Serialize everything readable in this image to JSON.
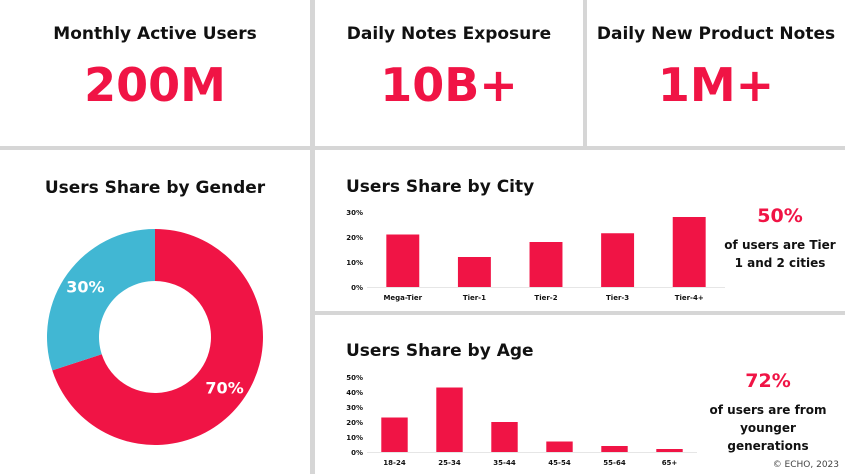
{
  "colors": {
    "accent": "#f01445",
    "secondary": "#41b7d3",
    "text": "#111111"
  },
  "stats": [
    {
      "title": "Monthly Active Users",
      "value": "200M"
    },
    {
      "title": "Daily Notes Exposure",
      "value": "10B+"
    },
    {
      "title": "Daily New Product Notes",
      "value": "1M+"
    }
  ],
  "gender": {
    "title": "Users Share by Gender"
  },
  "city": {
    "title": "Users Share by City",
    "highlight_value": "50%",
    "highlight_text": "of users are Tier 1 and 2 cities"
  },
  "age": {
    "title": "Users Share by Age",
    "highlight_value": "72%",
    "highlight_text": "of users are from younger generations"
  },
  "copyright": "© ECHO, 2023",
  "chart_data": [
    {
      "type": "pie",
      "title": "Users Share by Gender",
      "categories": [
        "",
        ""
      ],
      "values": [
        70,
        30
      ],
      "labels": [
        "70%",
        "30%"
      ],
      "colors": [
        "#f01445",
        "#41b7d3"
      ],
      "donut": true
    },
    {
      "type": "bar",
      "title": "Users Share by City",
      "categories": [
        "Mega-Tier",
        "Tier-1",
        "Tier-2",
        "Tier-3",
        "Tier-4+"
      ],
      "values": [
        21,
        12,
        18,
        21.5,
        28
      ],
      "yticks": [
        "0%",
        "10%",
        "20%",
        "30%"
      ],
      "ylim": [
        0,
        30
      ],
      "grid": false
    },
    {
      "type": "bar",
      "title": "Users Share by Age",
      "categories": [
        "18-24",
        "25-34",
        "35-44",
        "45-54",
        "55-64",
        "65+"
      ],
      "values": [
        23,
        43,
        20,
        7,
        4,
        2
      ],
      "yticks": [
        "0%",
        "10%",
        "20%",
        "30%",
        "40%",
        "50%"
      ],
      "ylim": [
        0,
        50
      ],
      "grid": false
    }
  ]
}
